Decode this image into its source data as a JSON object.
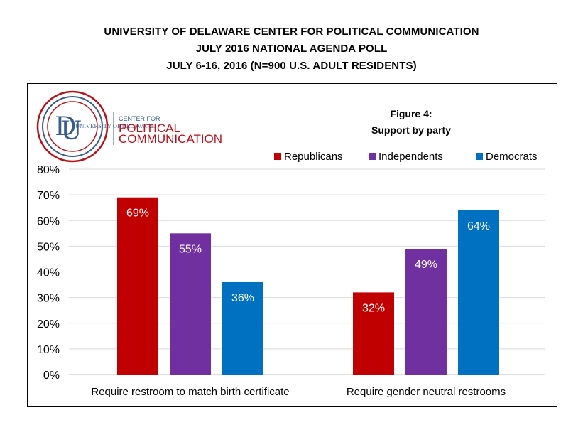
{
  "header": {
    "line1": "UNIVERSITY OF DELAWARE CENTER FOR POLITICAL COMMUNICATION",
    "line2": "JULY 2016 NATIONAL AGENDA POLL",
    "line3": "JULY 6-16, 2016 (N=900 U.S. ADULT RESIDENTS)"
  },
  "logo": {
    "university": "UNIVERSITY OF DELAWARE",
    "center_for": "CENTER FOR",
    "political": "POLITICAL",
    "communication": "COMMUNICATION"
  },
  "colors": {
    "republicans": "#C00000",
    "independents": "#7030A0",
    "democrats": "#0070C0",
    "logo_red": "#B5121B",
    "logo_blue": "#3A5C8C"
  },
  "chart_data": {
    "type": "bar",
    "title": "Figure 4:",
    "subtitle": "Support by party",
    "categories": [
      "Require restroom to match birth certificate",
      "Require gender neutral restrooms"
    ],
    "series": [
      {
        "name": "Republicans",
        "values": [
          69,
          32
        ],
        "color": "#C00000"
      },
      {
        "name": "Independents",
        "values": [
          55,
          49
        ],
        "color": "#7030A0"
      },
      {
        "name": "Democrats",
        "values": [
          36,
          64
        ],
        "color": "#0070C0"
      }
    ],
    "ylim": [
      0,
      80
    ],
    "yticks": [
      "0%",
      "10%",
      "20%",
      "30%",
      "40%",
      "50%",
      "60%",
      "70%",
      "80%"
    ],
    "value_suffix": "%",
    "grid": true,
    "legend": "top-right"
  }
}
